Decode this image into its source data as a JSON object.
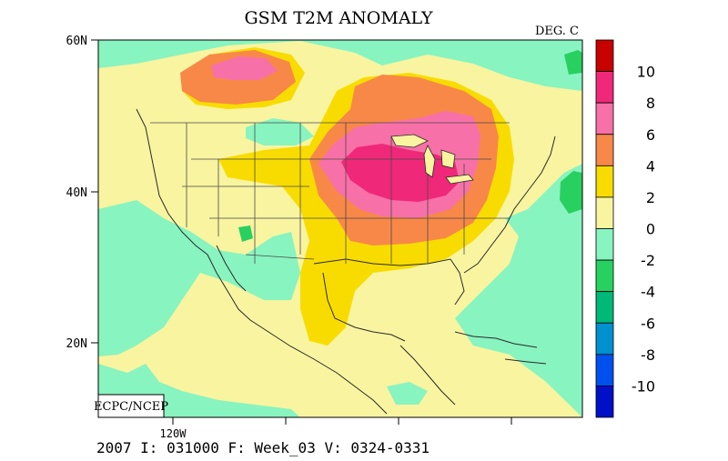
{
  "map": {
    "title": "GSM T2M ANOMALY",
    "units": "DEG. C",
    "credit": "ECPC/NCEP",
    "lat_labels": [
      "60N",
      "40N",
      "20N"
    ],
    "lon_labels": [
      "120W"
    ],
    "footer": "2007 I: 031000 F: Week_03 V: 0324-0331"
  },
  "legend": {
    "labels": [
      "10",
      "8",
      "6",
      "4",
      "2",
      "0",
      "-2",
      "-4",
      "-6",
      "-8",
      "-10"
    ],
    "colors": [
      "#c80000",
      "#f0287a",
      "#f870a8",
      "#f88848",
      "#f8dc00",
      "#f8f4a0",
      "#88f4c0",
      "#28d060",
      "#00b878",
      "#0090d0",
      "#0050f0",
      "#0010c8"
    ]
  }
}
